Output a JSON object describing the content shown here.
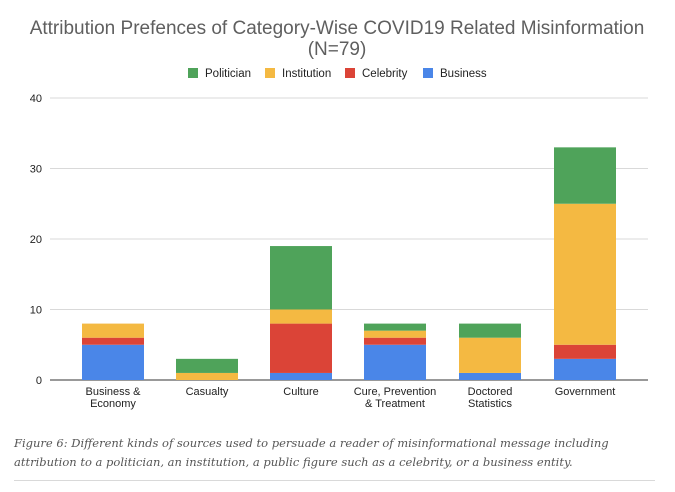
{
  "chart_data": {
    "type": "bar",
    "stacked": true,
    "title": "Attribution Prefences of Category-Wise COVID19 Related Misinformation",
    "subtitle": "(N=79)",
    "xlabel": "",
    "ylabel": "",
    "ylim": [
      0,
      40
    ],
    "yticks": [
      0,
      10,
      20,
      30,
      40
    ],
    "grid": true,
    "legend_position": "top",
    "legend_order": [
      "Politician",
      "Institution",
      "Celebrity",
      "Business"
    ],
    "categories": [
      [
        "Business &",
        "Economy"
      ],
      [
        "Casualty"
      ],
      [
        "Culture"
      ],
      [
        "Cure, Prevention",
        "& Treatment"
      ],
      [
        "Doctored",
        "Statistics"
      ],
      [
        "Government"
      ]
    ],
    "series": [
      {
        "name": "Business",
        "color": "#4a86e8",
        "values": [
          5,
          0,
          1,
          5,
          1,
          3
        ]
      },
      {
        "name": "Celebrity",
        "color": "#db4437",
        "values": [
          1,
          0,
          7,
          1,
          0,
          2
        ]
      },
      {
        "name": "Institution",
        "color": "#f4b942",
        "values": [
          2,
          1,
          2,
          1,
          5,
          20
        ]
      },
      {
        "name": "Politician",
        "color": "#4fa35a",
        "values": [
          0,
          2,
          9,
          1,
          2,
          8
        ]
      }
    ]
  },
  "caption": "Figure 6: Different kinds of sources used to persuade a reader of misinformational message including attribution to a politician, an institution, a public figure such as a celebrity, or a business entity."
}
